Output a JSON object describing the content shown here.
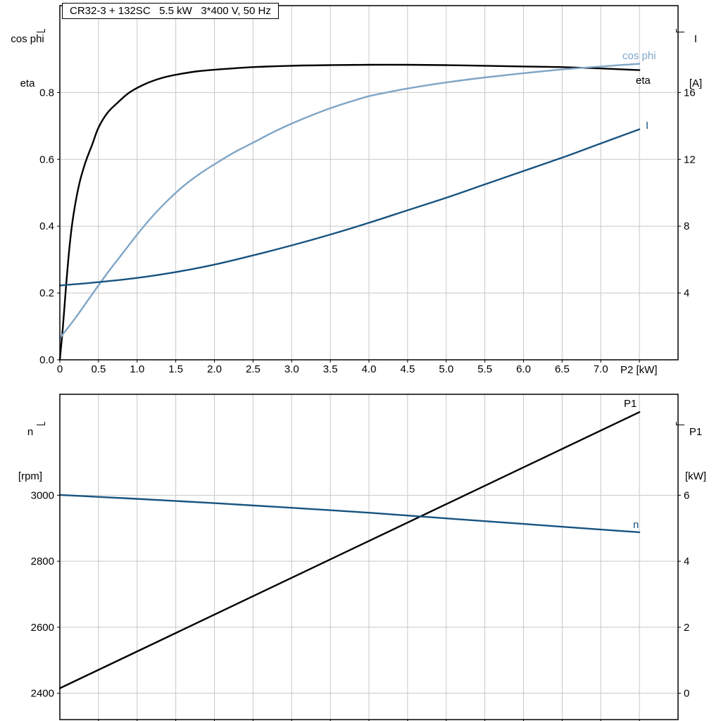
{
  "header": {
    "title": "CR32-3 + 132SC   5.5 kW   3*400 V, 50 Hz"
  },
  "colors": {
    "black": "#000000",
    "cos_phi_blue": "#7fa5c6",
    "dark_blue": "#17537f",
    "grid": "#c8c8c8"
  },
  "axis_corner_labels": {
    "top_left": [
      "cos phi",
      "eta"
    ],
    "top_right": [
      "I",
      "[A]"
    ],
    "bottom_left": [
      "n",
      "[rpm]"
    ],
    "bottom_right": [
      "P1",
      "[kW]"
    ]
  },
  "curve_labels": {
    "cos_phi": "cos phi",
    "eta": "eta",
    "current": "I",
    "p1": "P1",
    "n": "n"
  },
  "x_axis_label": "P2 [kW]",
  "chart_data": [
    {
      "type": "line",
      "title": "CR32-3 + 132SC 5.5 kW 3*400 V, 50 Hz",
      "xlabel": "P2 [kW]",
      "xlim": [
        0,
        8.0
      ],
      "grid": true,
      "grid_color": "#c8c8c8",
      "grid_x": [
        0.5,
        1,
        1.5,
        2,
        2.5,
        3,
        3.5,
        4,
        4.5,
        5,
        5.5,
        6,
        6.5,
        7,
        7.5
      ],
      "x_ticks": [
        0,
        0.5,
        1,
        1.5,
        2,
        2.5,
        3,
        3.5,
        4,
        4.5,
        5,
        5.5,
        6,
        6.5,
        7
      ],
      "x_tick_labels": [
        "0",
        "0.5",
        "1.0",
        "1.5",
        "2.0",
        "2.5",
        "3.0",
        "3.5",
        "4.0",
        "4.5",
        "5.0",
        "5.5",
        "6.0",
        "6.5",
        "7.0"
      ],
      "left_axis": {
        "label": "cos phi / eta",
        "lim": [
          0,
          1.06
        ],
        "ticks": [
          0,
          0.2,
          0.4,
          0.6,
          0.8
        ],
        "tick_labels": [
          "0.0",
          "0.2",
          "0.4",
          "0.6",
          "0.8"
        ]
      },
      "right_axis": {
        "label": "I [A]",
        "lim": [
          0,
          21.2
        ],
        "ticks": [
          4,
          8,
          12,
          16
        ],
        "tick_labels": [
          "4",
          "8",
          "12",
          "16"
        ]
      },
      "legend_position": "right-inside",
      "series": [
        {
          "name": "eta",
          "axis": "left",
          "color": "#000000",
          "x": [
            0,
            0.04,
            0.08,
            0.13,
            0.18,
            0.25,
            0.33,
            0.42,
            0.5,
            0.62,
            0.75,
            0.9,
            1.1,
            1.3,
            1.5,
            1.8,
            2.1,
            2.5,
            3,
            3.5,
            4,
            4.5,
            5,
            5.5,
            6,
            6.5,
            7,
            7.5
          ],
          "y": [
            0,
            0.1,
            0.22,
            0.35,
            0.44,
            0.525,
            0.59,
            0.645,
            0.695,
            0.74,
            0.77,
            0.8,
            0.825,
            0.842,
            0.853,
            0.864,
            0.87,
            0.876,
            0.88,
            0.882,
            0.883,
            0.883,
            0.882,
            0.88,
            0.878,
            0.876,
            0.872,
            0.867
          ]
        },
        {
          "name": "cos phi",
          "axis": "left",
          "color": "#7fa5c6",
          "x": [
            0,
            0.2,
            0.4,
            0.6,
            0.8,
            1,
            1.2,
            1.4,
            1.6,
            1.8,
            2,
            2.25,
            2.5,
            2.75,
            3,
            3.25,
            3.5,
            3.75,
            4,
            4.25,
            4.5,
            5,
            5.5,
            6,
            6.5,
            7,
            7.5
          ],
          "y": [
            0.065,
            0.125,
            0.19,
            0.255,
            0.315,
            0.375,
            0.43,
            0.478,
            0.52,
            0.555,
            0.585,
            0.62,
            0.65,
            0.68,
            0.707,
            0.731,
            0.753,
            0.772,
            0.789,
            0.801,
            0.812,
            0.83,
            0.845,
            0.858,
            0.869,
            0.878,
            0.886
          ]
        },
        {
          "name": "I",
          "axis": "right",
          "color": "#17537f",
          "x": [
            0,
            0.5,
            1,
            1.5,
            2,
            2.5,
            3,
            3.5,
            4,
            4.5,
            5,
            5.5,
            6,
            6.5,
            7,
            7.5
          ],
          "y": [
            4.45,
            4.65,
            4.9,
            5.25,
            5.7,
            6.25,
            6.85,
            7.5,
            8.2,
            8.95,
            9.7,
            10.5,
            11.3,
            12.1,
            12.95,
            13.8
          ]
        }
      ]
    },
    {
      "type": "line",
      "title": "",
      "xlabel": "",
      "xlim": [
        0,
        8.0
      ],
      "grid": true,
      "grid_color": "#c8c8c8",
      "grid_x": [
        0.5,
        1,
        1.5,
        2,
        2.5,
        3,
        3.5,
        4,
        4.5,
        5,
        5.5,
        6,
        6.5,
        7,
        7.5
      ],
      "x_ticks": [
        0.5,
        1,
        1.5,
        2,
        2.5,
        3,
        3.5,
        4,
        4.5,
        5,
        5.5,
        6,
        6.5,
        7,
        7.5
      ],
      "x_tick_labels": [],
      "left_axis": {
        "label": "n [rpm]",
        "lim": [
          2320,
          3306
        ],
        "ticks": [
          2400,
          2600,
          2800,
          3000
        ],
        "tick_labels": [
          "2400",
          "2600",
          "2800",
          "3000"
        ]
      },
      "right_axis": {
        "label": "P1 [kW]",
        "lim": [
          -0.8,
          9.06
        ],
        "ticks": [
          0,
          2,
          4,
          6
        ],
        "tick_labels": [
          "0",
          "2",
          "4",
          "6"
        ]
      },
      "legend_position": "right-inside",
      "series": [
        {
          "name": "P1",
          "axis": "right",
          "color": "#000000",
          "x": [
            0,
            7.5
          ],
          "y": [
            0.15,
            8.52
          ]
        },
        {
          "name": "n",
          "axis": "left",
          "color": "#17537f",
          "x": [
            0,
            1,
            2,
            3,
            4,
            5,
            6,
            7,
            7.5
          ],
          "y": [
            3001,
            2989,
            2976,
            2962,
            2947,
            2930,
            2913,
            2896,
            2888
          ]
        }
      ]
    }
  ]
}
